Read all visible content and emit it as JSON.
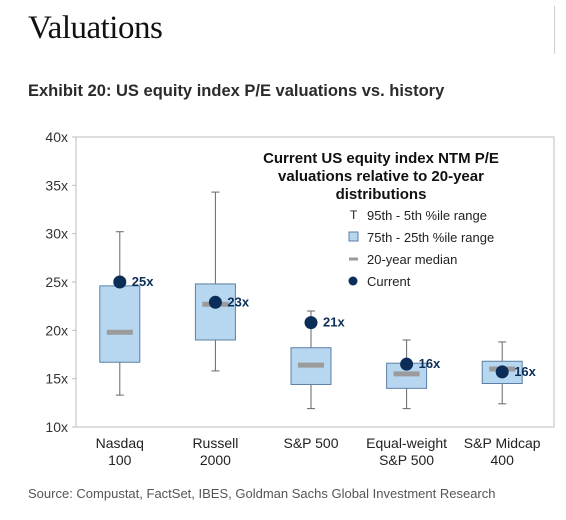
{
  "page": {
    "heading": "Valuations",
    "exhibit_title": "Exhibit 20: US equity index P/E valuations vs. history",
    "source": "Source: Compustat, FactSet, IBES, Goldman Sachs Global Investment Research"
  },
  "chart_data": {
    "type": "box",
    "title": "Current US equity index NTM P/E valuations relative to 20-year distributions",
    "title_lines": [
      "Current US equity index NTM P/E",
      "valuations relative to 20-year",
      "distributions"
    ],
    "ylim": [
      10,
      40
    ],
    "yticks": [
      10,
      15,
      20,
      25,
      30,
      35,
      40
    ],
    "ytick_labels": [
      "10x",
      "15x",
      "20x",
      "25x",
      "30x",
      "35x",
      "40x"
    ],
    "grid": false,
    "legend": {
      "placement": "top-right",
      "entries": [
        {
          "marker": "T",
          "label": "95th - 5th %ile range"
        },
        {
          "marker": "box",
          "label": "75th - 25th %ile range"
        },
        {
          "marker": "median",
          "label": "20-year median"
        },
        {
          "marker": "dot",
          "label": "Current"
        }
      ]
    },
    "colors": {
      "box_fill": "#b7d7f1",
      "box_stroke": "#5b7fa6",
      "median": "#9b9b9b",
      "current": "#0b2e59",
      "whisker": "#666666"
    },
    "categories": [
      {
        "label": [
          "Nasdaq",
          "100"
        ],
        "p5": 13.3,
        "p25": 16.7,
        "median": 19.8,
        "p75": 24.6,
        "p95": 30.2,
        "current": 25.0,
        "current_label": "25x"
      },
      {
        "label": [
          "Russell",
          "2000"
        ],
        "p5": 15.8,
        "p25": 19.0,
        "median": 22.7,
        "p75": 24.8,
        "p95": 34.3,
        "current": 22.9,
        "current_label": "23x"
      },
      {
        "label": [
          "S&P 500"
        ],
        "p5": 11.9,
        "p25": 14.4,
        "median": 16.4,
        "p75": 18.2,
        "p95": 22.0,
        "current": 20.8,
        "current_label": "21x"
      },
      {
        "label": [
          "Equal-weight",
          "S&P 500"
        ],
        "p5": 11.9,
        "p25": 14.0,
        "median": 15.5,
        "p75": 16.6,
        "p95": 19.0,
        "current": 16.5,
        "current_label": "16x"
      },
      {
        "label": [
          "S&P Midcap",
          "400"
        ],
        "p5": 12.4,
        "p25": 14.5,
        "median": 16.0,
        "p75": 16.8,
        "p95": 18.8,
        "current": 15.7,
        "current_label": "16x"
      }
    ]
  }
}
